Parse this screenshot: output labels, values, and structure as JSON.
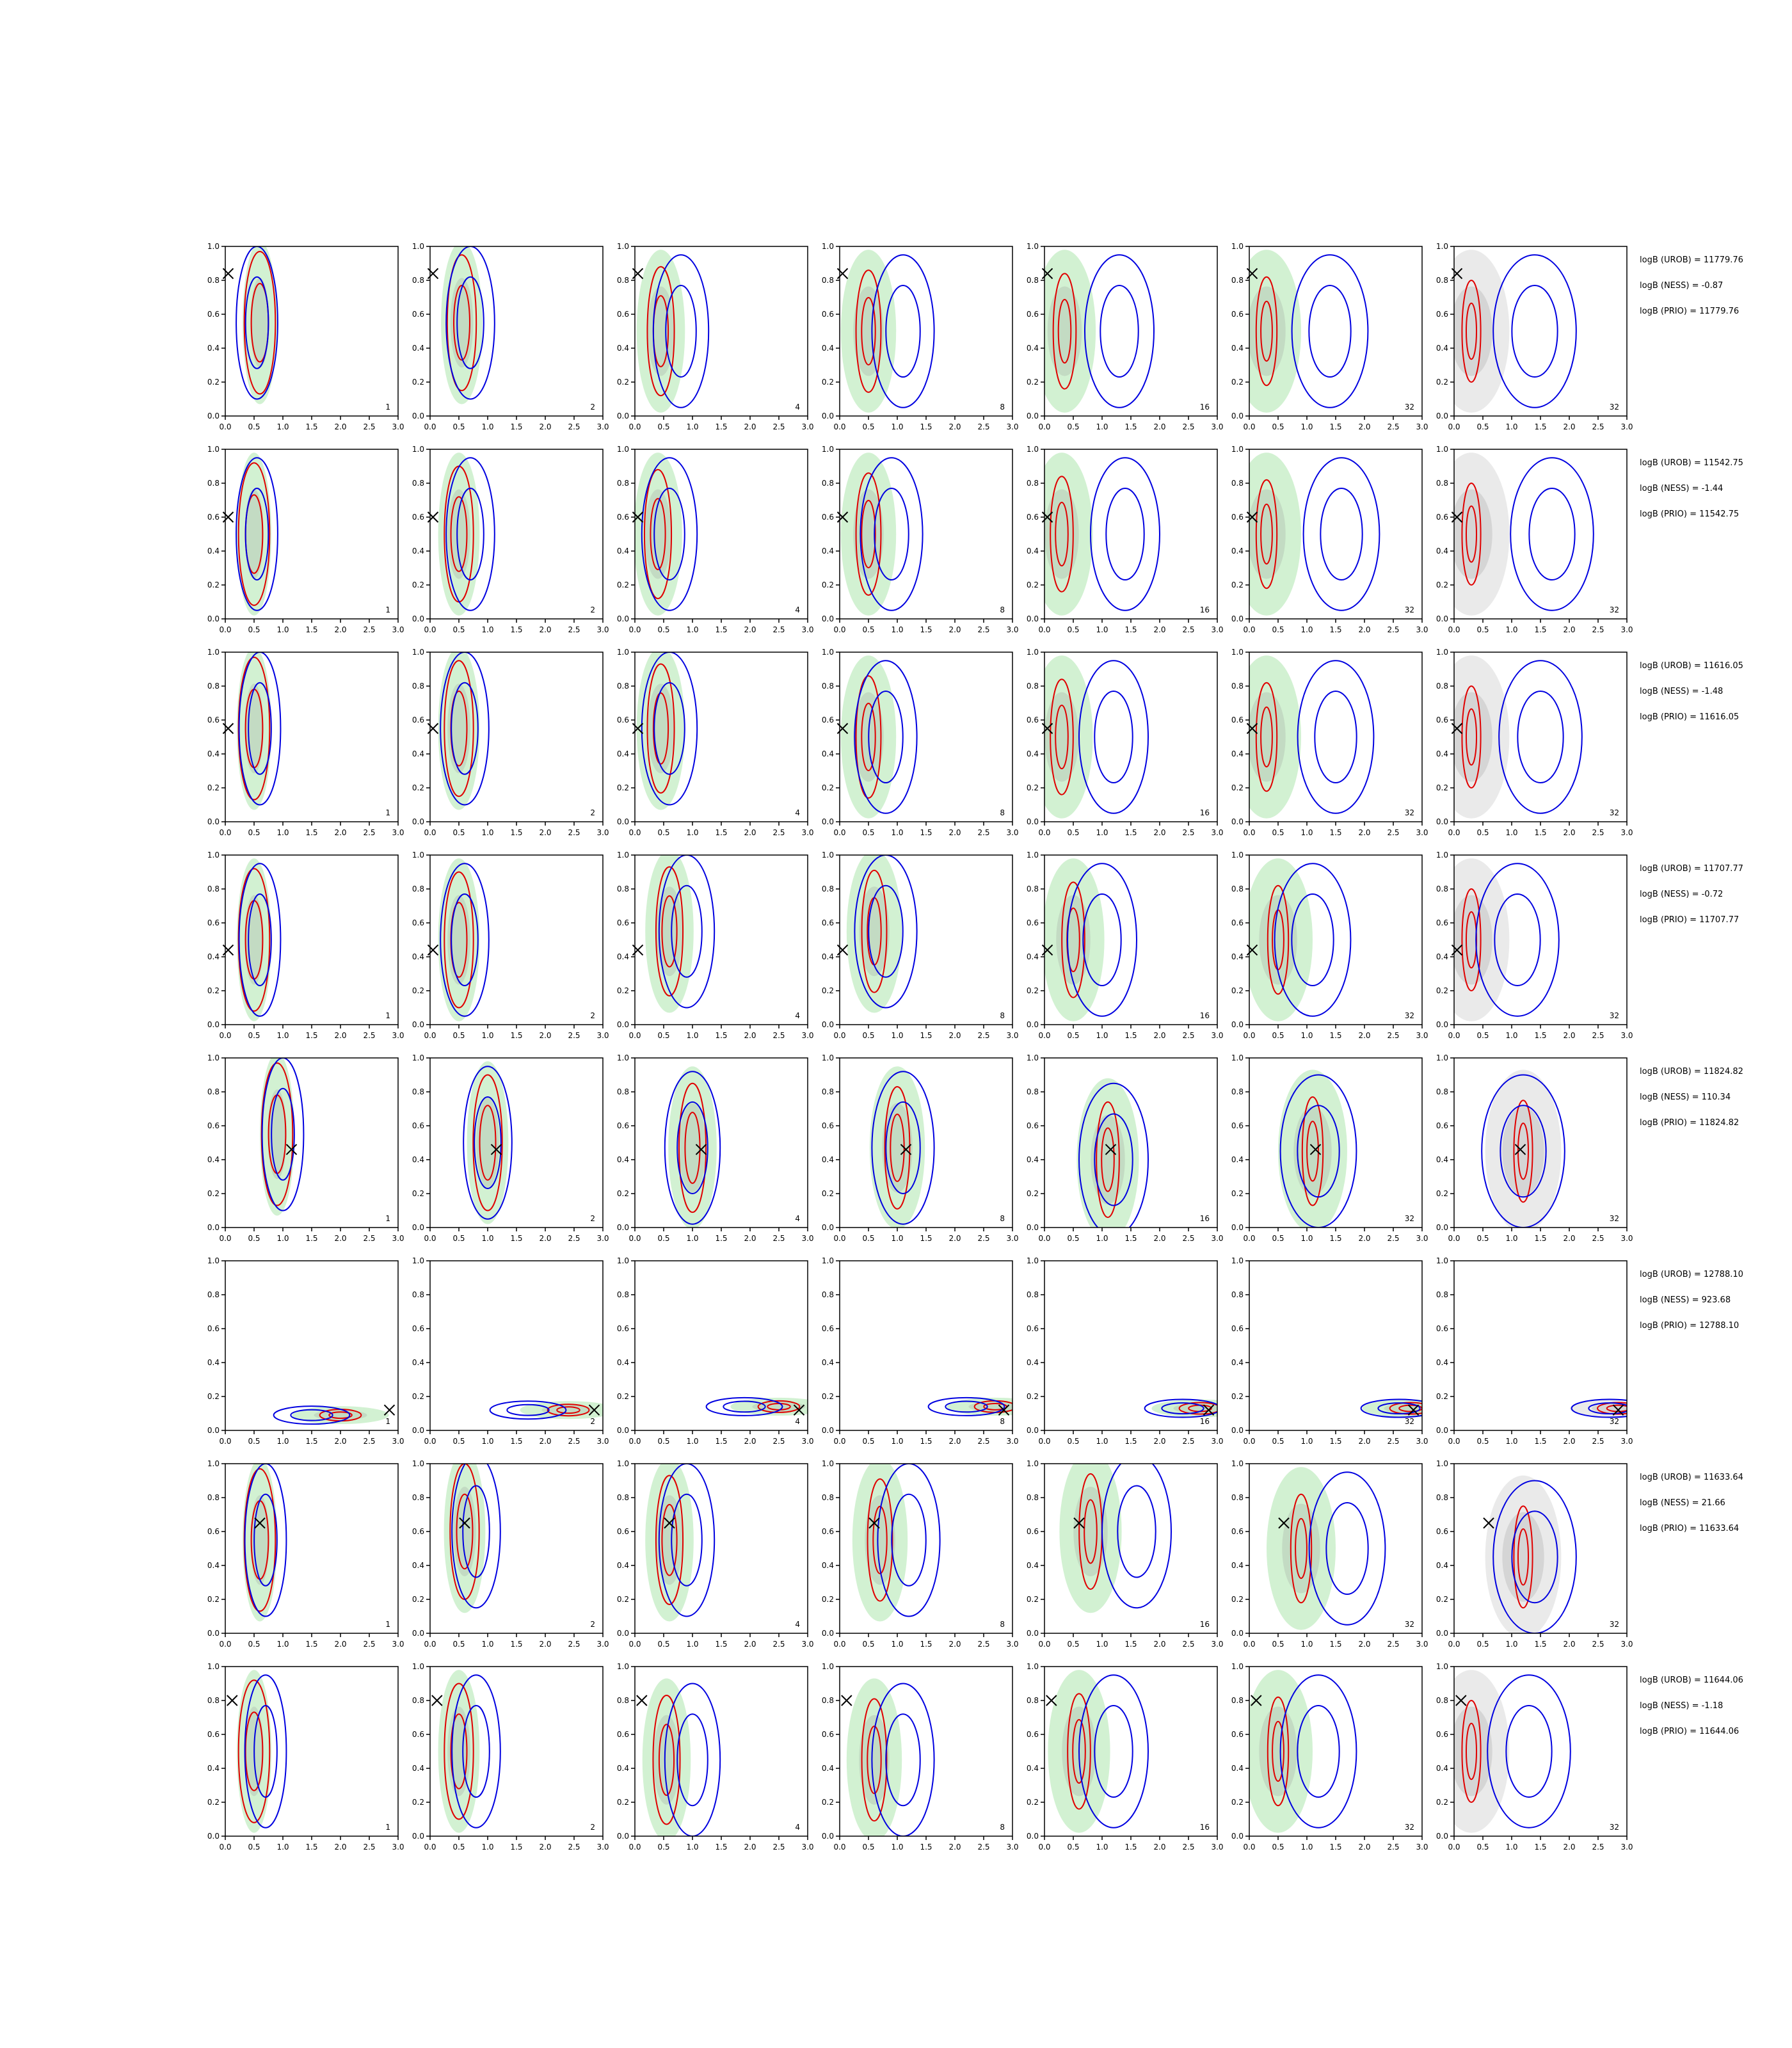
{
  "chart_data": {
    "type": "contour_grid",
    "xlim": [
      0.0,
      3.0
    ],
    "ylim": [
      0.0,
      1.0
    ],
    "x_ticks": [
      "0.0",
      "0.5",
      "1.0",
      "1.5",
      "2.0",
      "2.5",
      "3.0"
    ],
    "y_ticks": [
      "0.0",
      "0.2",
      "0.4",
      "0.6",
      "0.8",
      "1.0"
    ],
    "column_labels": [
      "1",
      "2",
      "4",
      "8",
      "16",
      "32",
      "32"
    ],
    "series_colors": {
      "green": "#7fd87f",
      "gray": "#8c8c8c",
      "red": "#e00000",
      "blue": "#0000e0",
      "marker": "#000000"
    },
    "rows": [
      {
        "marker": [
          0.05,
          0.84
        ],
        "logB": [
          "logB (UROB) = 11779.76",
          "logB (NESS) = -0.87",
          "logB (PRIO) = 11779.76"
        ],
        "cx": [
          0.6,
          0.55,
          0.45,
          0.5,
          0.35,
          0.3,
          0.3
        ],
        "cy": [
          0.55,
          0.55,
          0.5,
          0.5,
          0.5,
          0.5,
          0.5
        ],
        "bx": [
          0.55,
          0.7,
          0.8,
          1.1,
          1.3,
          1.4,
          1.4
        ]
      },
      {
        "marker": [
          0.05,
          0.6
        ],
        "logB": [
          "logB (UROB) = 11542.75",
          "logB (NESS) = -1.44",
          "logB (PRIO) = 11542.75"
        ],
        "cx": [
          0.5,
          0.5,
          0.4,
          0.5,
          0.3,
          0.3,
          0.3
        ],
        "cy": [
          0.5,
          0.5,
          0.5,
          0.5,
          0.5,
          0.5,
          0.5
        ],
        "bx": [
          0.55,
          0.7,
          0.6,
          0.9,
          1.4,
          1.6,
          1.7
        ]
      },
      {
        "marker": [
          0.05,
          0.55
        ],
        "logB": [
          "logB (UROB) = 11616.05",
          "logB (NESS) = -1.48",
          "logB (PRIO) = 11616.05"
        ],
        "cx": [
          0.5,
          0.5,
          0.45,
          0.5,
          0.3,
          0.3,
          0.3
        ],
        "cy": [
          0.55,
          0.55,
          0.55,
          0.5,
          0.5,
          0.5,
          0.5
        ],
        "bx": [
          0.6,
          0.6,
          0.6,
          0.8,
          1.2,
          1.5,
          1.5
        ]
      },
      {
        "marker": [
          0.05,
          0.44
        ],
        "logB": [
          "logB (UROB) = 11707.77",
          "logB (NESS) = -0.72",
          "logB (PRIO) = 11707.77"
        ],
        "cx": [
          0.5,
          0.5,
          0.6,
          0.6,
          0.5,
          0.5,
          0.3
        ],
        "cy": [
          0.5,
          0.5,
          0.55,
          0.55,
          0.5,
          0.5,
          0.5
        ],
        "bx": [
          0.6,
          0.6,
          0.9,
          0.8,
          1.0,
          1.1,
          1.1
        ]
      },
      {
        "marker": [
          1.15,
          0.46
        ],
        "logB": [
          "logB (UROB) = 11824.82",
          "logB (NESS) = 110.34",
          "logB (PRIO) = 11824.82"
        ],
        "cx": [
          0.9,
          1.0,
          1.0,
          1.0,
          1.1,
          1.1,
          1.2
        ],
        "cy": [
          0.55,
          0.5,
          0.47,
          0.47,
          0.4,
          0.45,
          0.45
        ],
        "bx": [
          1.0,
          1.0,
          1.0,
          1.1,
          1.2,
          1.2,
          1.2
        ]
      },
      {
        "marker": [
          2.85,
          0.12
        ],
        "logB": [
          "logB (UROB) = 12788.10",
          "logB (NESS) = 923.68",
          "logB (PRIO) = 12788.10"
        ],
        "cx": [
          2.0,
          2.4,
          2.5,
          2.7,
          2.7,
          2.8,
          2.85
        ],
        "cy": [
          0.09,
          0.12,
          0.14,
          0.14,
          0.13,
          0.13,
          0.13
        ],
        "bx": [
          1.5,
          1.7,
          1.9,
          2.2,
          2.4,
          2.6,
          2.7
        ]
      },
      {
        "marker": [
          0.6,
          0.65
        ],
        "logB": [
          "logB (UROB) = 11633.64",
          "logB (NESS) = 21.66",
          "logB (PRIO) = 11633.64"
        ],
        "cx": [
          0.6,
          0.6,
          0.6,
          0.7,
          0.8,
          0.9,
          1.2
        ],
        "cy": [
          0.55,
          0.6,
          0.55,
          0.55,
          0.6,
          0.5,
          0.45
        ],
        "bx": [
          0.7,
          0.8,
          0.9,
          1.2,
          1.6,
          1.7,
          1.4
        ]
      },
      {
        "marker": [
          0.12,
          0.8
        ],
        "logB": [
          "logB (UROB) = 11644.06",
          "logB (NESS) = -1.18",
          "logB (PRIO) = 11644.06"
        ],
        "cx": [
          0.5,
          0.5,
          0.55,
          0.6,
          0.6,
          0.5,
          0.3
        ],
        "cy": [
          0.5,
          0.5,
          0.45,
          0.45,
          0.5,
          0.5,
          0.5
        ],
        "bx": [
          0.7,
          0.8,
          1.0,
          1.1,
          1.2,
          1.2,
          1.3
        ]
      }
    ]
  }
}
